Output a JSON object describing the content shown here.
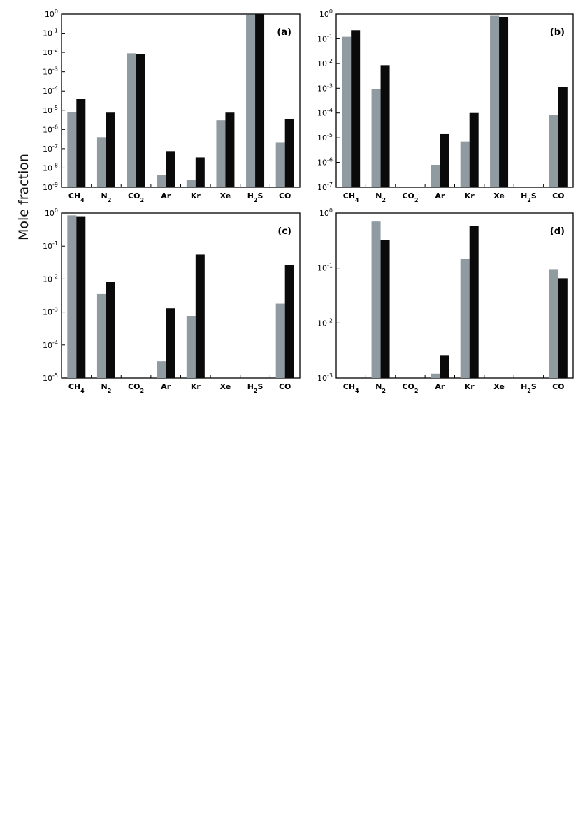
{
  "figure": {
    "ylabel": "Mole fraction"
  },
  "colors": {
    "series_light": "#8f9aa1",
    "series_dark": "#0a0a0a",
    "axis": "#000000"
  },
  "chart_data": [
    {
      "type": "bar",
      "panel_label": "(a)",
      "yscale": "log",
      "ylim": [
        1e-09,
        1
      ],
      "yticks": [
        1e-09,
        1e-08,
        1e-07,
        1e-06,
        1e-05,
        0.0001,
        0.001,
        0.01,
        0.1,
        1
      ],
      "categories": [
        "CH4",
        "N2",
        "CO2",
        "Ar",
        "Kr",
        "Xe",
        "H2S",
        "CO"
      ],
      "series": [
        {
          "values": [
            8e-06,
            4e-07,
            0.009,
            4.5e-09,
            2.3e-09,
            3e-06,
            0.95,
            2.2e-07
          ]
        },
        {
          "values": [
            4e-05,
            7.5e-06,
            0.008,
            7.5e-08,
            3.5e-08,
            7.5e-06,
            1.0,
            3.5e-06
          ]
        }
      ]
    },
    {
      "type": "bar",
      "panel_label": "(b)",
      "yscale": "log",
      "ylim": [
        1e-07,
        1
      ],
      "yticks": [
        1e-07,
        1e-06,
        1e-05,
        0.0001,
        0.001,
        0.01,
        0.1,
        1
      ],
      "categories": [
        "CH4",
        "N2",
        "CO2",
        "Ar",
        "Kr",
        "Xe",
        "H2S",
        "CO"
      ],
      "series": [
        {
          "values": [
            0.12,
            0.0009,
            null,
            8e-07,
            7e-06,
            0.85,
            null,
            8.5e-05
          ]
        },
        {
          "values": [
            0.22,
            0.0085,
            null,
            1.4e-05,
            0.0001,
            0.75,
            null,
            0.0011
          ]
        }
      ]
    },
    {
      "type": "bar",
      "panel_label": "(c)",
      "yscale": "log",
      "ylim": [
        1e-05,
        1
      ],
      "yticks": [
        1e-05,
        0.0001,
        0.001,
        0.01,
        0.1,
        1
      ],
      "categories": [
        "CH4",
        "N2",
        "CO2",
        "Ar",
        "Kr",
        "Xe",
        "H2S",
        "CO"
      ],
      "series": [
        {
          "values": [
            0.85,
            0.0035,
            null,
            3.2e-05,
            0.00075,
            null,
            null,
            0.0018
          ]
        },
        {
          "values": [
            0.8,
            0.008,
            null,
            0.0013,
            0.055,
            null,
            null,
            0.026
          ]
        }
      ]
    },
    {
      "type": "bar",
      "panel_label": "(d)",
      "yscale": "log",
      "ylim": [
        0.001,
        1
      ],
      "yticks": [
        0.001,
        0.01,
        0.1,
        1
      ],
      "categories": [
        "CH4",
        "N2",
        "CO2",
        "Ar",
        "Kr",
        "Xe",
        "H2S",
        "CO"
      ],
      "series": [
        {
          "values": [
            null,
            0.7,
            null,
            0.0012,
            0.145,
            null,
            null,
            0.095
          ]
        },
        {
          "values": [
            null,
            0.32,
            null,
            0.0026,
            0.58,
            null,
            null,
            0.065
          ]
        }
      ]
    }
  ]
}
